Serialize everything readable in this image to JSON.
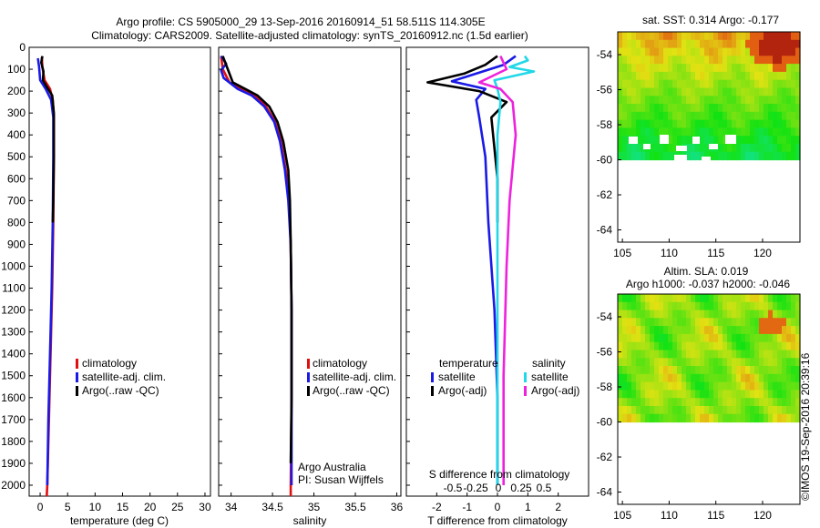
{
  "title": {
    "line1": "Argo profile: CS 5905000_29 13-Sep-2016 20160914_51 58.511S 114.305E",
    "line2": "Climatology: CARS2009. Satellite-adjusted climatology: synTS_20160912.nc (1.5d earlier)"
  },
  "depth_ticks": [
    "0",
    "100",
    "200",
    "300",
    "400",
    "500",
    "600",
    "700",
    "800",
    "900",
    "1000",
    "1100",
    "1200",
    "1300",
    "1400",
    "1500",
    "1600",
    "1700",
    "1800",
    "1900",
    "2000"
  ],
  "colors": {
    "red": "#e01010",
    "blue": "#1a1ae6",
    "black": "#000000",
    "cyan": "#22d8e8",
    "magenta": "#ee22dd"
  },
  "chart_data": [
    {
      "type": "line",
      "id": "temperature",
      "xlabel": "temperature (deg C)",
      "xlim": [
        -2,
        31
      ],
      "ylim": [
        2050,
        0
      ],
      "xticks": [
        0,
        5,
        10,
        15,
        20,
        25,
        30
      ],
      "xtick_labels": [
        "0",
        "5",
        "10",
        "15",
        "20",
        "25",
        "30"
      ],
      "legend": [
        "climatology",
        "satellite-adj. clim.",
        "Argo(..raw -QC)"
      ],
      "series": [
        {
          "name": "climatology",
          "color": "red",
          "points": [
            [
              0.3,
              45
            ],
            [
              0.4,
              90
            ],
            [
              0.8,
              150
            ],
            [
              1.8,
              190
            ],
            [
              2.3,
              240
            ],
            [
              2.5,
              320
            ],
            [
              2.5,
              500
            ],
            [
              2.4,
              800
            ],
            [
              2.2,
              1100
            ],
            [
              1.9,
              1400
            ],
            [
              1.6,
              1700
            ],
            [
              1.3,
              2000
            ],
            [
              1.2,
              2050
            ]
          ]
        },
        {
          "name": "satellite-adj. clim.",
          "color": "blue",
          "points": [
            [
              -0.4,
              50
            ],
            [
              -0.2,
              90
            ],
            [
              0.0,
              150
            ],
            [
              1.0,
              190
            ],
            [
              2.0,
              240
            ],
            [
              2.4,
              320
            ],
            [
              2.4,
              500
            ],
            [
              2.3,
              800
            ],
            [
              2.1,
              1100
            ],
            [
              1.8,
              1400
            ],
            [
              1.5,
              1700
            ],
            [
              1.3,
              2000
            ]
          ]
        },
        {
          "name": "Argo(..raw -QC)",
          "color": "black",
          "points": [
            [
              0.4,
              40
            ],
            [
              0.2,
              70
            ],
            [
              0.6,
              110
            ],
            [
              0.5,
              150
            ],
            [
              1.2,
              180
            ],
            [
              2.2,
              220
            ],
            [
              2.5,
              300
            ],
            [
              2.5,
              500
            ],
            [
              2.4,
              700
            ],
            [
              2.3,
              800
            ]
          ]
        }
      ]
    },
    {
      "type": "line",
      "id": "salinity",
      "xlabel": "salinity",
      "xlim": [
        33.85,
        36.05
      ],
      "ylim": [
        2050,
        0
      ],
      "xticks": [
        34,
        34.5,
        35,
        35.5,
        36
      ],
      "xtick_labels": [
        "34",
        "34.5",
        "35",
        "35.5",
        "36"
      ],
      "legend": [
        "climatology",
        "satellite-adj. clim.",
        "Argo(..raw -QC)"
      ],
      "annotation": [
        "Argo Australia",
        "PI: Susan Wijffels"
      ],
      "series": [
        {
          "name": "climatology",
          "color": "red",
          "points": [
            [
              33.88,
              40
            ],
            [
              33.9,
              100
            ],
            [
              33.98,
              160
            ],
            [
              34.13,
              190
            ],
            [
              34.29,
              220
            ],
            [
              34.42,
              270
            ],
            [
              34.53,
              340
            ],
            [
              34.6,
              430
            ],
            [
              34.66,
              560
            ],
            [
              34.7,
              700
            ],
            [
              34.72,
              900
            ],
            [
              34.73,
              1200
            ],
            [
              34.73,
              1600
            ],
            [
              34.72,
              2000
            ],
            [
              34.72,
              2050
            ]
          ]
        },
        {
          "name": "satellite-adj. clim.",
          "color": "blue",
          "points": [
            [
              33.88,
              40
            ],
            [
              33.94,
              75
            ],
            [
              33.88,
              105
            ],
            [
              33.91,
              140
            ],
            [
              34.08,
              190
            ],
            [
              34.25,
              220
            ],
            [
              34.4,
              270
            ],
            [
              34.52,
              340
            ],
            [
              34.59,
              430
            ],
            [
              34.65,
              560
            ],
            [
              34.69,
              700
            ],
            [
              34.72,
              900
            ],
            [
              34.73,
              1200
            ],
            [
              34.73,
              1600
            ],
            [
              34.73,
              2000
            ]
          ]
        },
        {
          "name": "Argo(..raw -QC)",
          "color": "black",
          "points": [
            [
              33.9,
              40
            ],
            [
              33.96,
              100
            ],
            [
              34.02,
              160
            ],
            [
              34.17,
              190
            ],
            [
              34.32,
              220
            ],
            [
              34.46,
              270
            ],
            [
              34.56,
              340
            ],
            [
              34.63,
              430
            ],
            [
              34.69,
              560
            ],
            [
              34.71,
              700
            ],
            [
              34.72,
              900
            ],
            [
              34.73,
              1200
            ],
            [
              34.73,
              1600
            ],
            [
              34.72,
              1900
            ]
          ]
        }
      ]
    },
    {
      "type": "line",
      "id": "difference",
      "xlabel": "T difference from climatology",
      "xlabel2": "S difference from climatology",
      "xlim": [
        -3,
        3
      ],
      "ylim": [
        2050,
        0
      ],
      "xticks": [
        -2,
        -1,
        0,
        1,
        2
      ],
      "xtick_labels": [
        "-2",
        "-1",
        "0",
        "1",
        "2"
      ],
      "sticks": [
        -0.5,
        -0.25,
        0,
        0.25,
        0.5
      ],
      "stick_labels": [
        "-0.5",
        "-0.25",
        "0",
        "0.25",
        "0.5"
      ],
      "legend_headers": [
        "temperature",
        "salinity"
      ],
      "legend": [
        "satellite",
        "Argo(-adj)",
        "satellite",
        "Argo(-adj)"
      ],
      "series": [
        {
          "name": "T satellite",
          "color": "blue",
          "points": [
            [
              0.6,
              40
            ],
            [
              0.2,
              80
            ],
            [
              -1.5,
              155
            ],
            [
              -0.4,
              190
            ],
            [
              -0.7,
              240
            ],
            [
              -0.6,
              320
            ],
            [
              -0.4,
              500
            ],
            [
              -0.3,
              800
            ],
            [
              -0.1,
              1200
            ],
            [
              0.0,
              1600
            ],
            [
              0.0,
              2000
            ]
          ]
        },
        {
          "name": "T Argo(-adj)",
          "color": "black",
          "points": [
            [
              0.0,
              40
            ],
            [
              -0.4,
              80
            ],
            [
              -1.1,
              120
            ],
            [
              -2.3,
              160
            ],
            [
              -0.6,
              200
            ],
            [
              0.3,
              250
            ],
            [
              -0.2,
              320
            ],
            [
              0.0,
              600
            ],
            [
              0.0,
              800
            ]
          ]
        },
        {
          "name": "S satellite",
          "color": "cyan",
          "points": [
            [
              0.9,
              40
            ],
            [
              1.0,
              60
            ],
            [
              0.4,
              90
            ],
            [
              1.2,
              110
            ],
            [
              -0.1,
              150
            ],
            [
              0.0,
              190
            ],
            [
              0.1,
              250
            ],
            [
              0.0,
              400
            ],
            [
              0.0,
              800
            ],
            [
              0.0,
              1600
            ],
            [
              0.0,
              2000
            ]
          ]
        },
        {
          "name": "S Argo(-adj)",
          "color": "magenta",
          "points": [
            [
              0.1,
              40
            ],
            [
              0.3,
              100
            ],
            [
              -0.6,
              160
            ],
            [
              0.1,
              190
            ],
            [
              0.5,
              250
            ],
            [
              0.6,
              400
            ],
            [
              0.4,
              700
            ],
            [
              0.3,
              1000
            ],
            [
              0.2,
              1500
            ],
            [
              0.2,
              2000
            ]
          ]
        }
      ]
    },
    {
      "type": "heatmap",
      "id": "sst",
      "title": "sat. SST: 0.314  Argo: -0.177",
      "xlim": [
        104.5,
        124
      ],
      "ylim": [
        -64.7,
        -52.7
      ],
      "xticks": [
        105,
        110,
        115,
        120
      ],
      "yticks": [
        -54,
        -56,
        -58,
        -60,
        -62,
        -64
      ],
      "ytick_labels": [
        "-54",
        "-56",
        "-58",
        "-60",
        "-62",
        "-64"
      ]
    },
    {
      "type": "heatmap",
      "id": "sla",
      "title": "Altim. SLA: 0.019",
      "subtitle": "Argo h1000: -0.037 h2000: -0.046",
      "xlim": [
        104.5,
        124
      ],
      "ylim": [
        -64.7,
        -52.7
      ],
      "xticks": [
        105,
        110,
        115,
        120
      ],
      "yticks": [
        -54,
        -56,
        -58,
        -60,
        -62,
        -64
      ],
      "ytick_labels": [
        "-54",
        "-56",
        "-58",
        "-60",
        "-62",
        "-64"
      ]
    }
  ],
  "stamp": "©IMOS 19-Sep-2016 20:39:16"
}
